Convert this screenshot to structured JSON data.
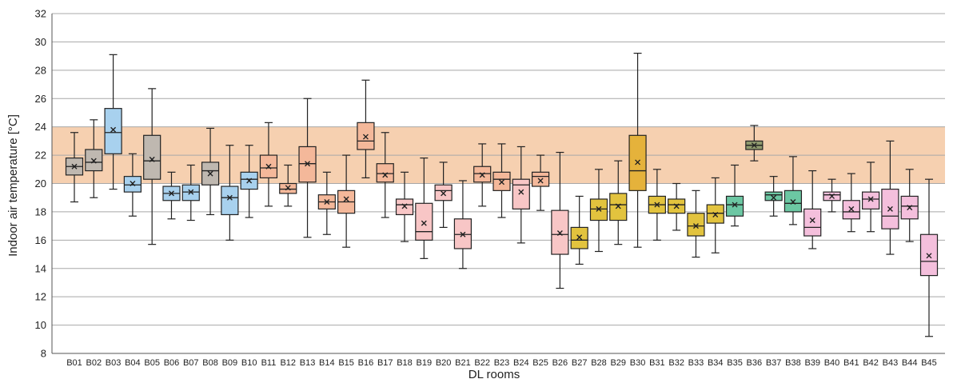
{
  "chart_data": {
    "type": "boxplot",
    "xlabel": "DL rooms",
    "ylabel": "Indoor air temperature [°C]",
    "ylim": [
      8,
      32
    ],
    "yticks": [
      8,
      10,
      12,
      14,
      16,
      18,
      20,
      22,
      24,
      26,
      28,
      30,
      32
    ],
    "grid": "horizontal",
    "comfort_band": {
      "low": 20,
      "high": 24,
      "color": "#f5cba7"
    },
    "boxes": [
      {
        "label": "B01",
        "min": 18.7,
        "q1": 20.6,
        "median": 21.2,
        "q3": 21.8,
        "max": 23.6,
        "mean": 21.2,
        "color": "#bfb8b0"
      },
      {
        "label": "B02",
        "min": 19.0,
        "q1": 20.9,
        "median": 21.5,
        "q3": 22.4,
        "max": 24.5,
        "mean": 21.6,
        "color": "#bfb8b0"
      },
      {
        "label": "B03",
        "min": 19.6,
        "q1": 22.1,
        "median": 23.6,
        "q3": 25.3,
        "max": 29.1,
        "mean": 23.8,
        "color": "#a8d1ee"
      },
      {
        "label": "B04",
        "min": 17.7,
        "q1": 19.4,
        "median": 19.9,
        "q3": 20.5,
        "max": 22.1,
        "mean": 20.0,
        "color": "#a8d1ee"
      },
      {
        "label": "B05",
        "min": 15.7,
        "q1": 20.3,
        "median": 21.6,
        "q3": 23.4,
        "max": 26.7,
        "mean": 21.7,
        "color": "#bfb8b0"
      },
      {
        "label": "B06",
        "min": 17.5,
        "q1": 18.8,
        "median": 19.3,
        "q3": 19.8,
        "max": 20.8,
        "mean": 19.3,
        "color": "#a8d1ee"
      },
      {
        "label": "B07",
        "min": 17.4,
        "q1": 18.8,
        "median": 19.4,
        "q3": 19.9,
        "max": 21.3,
        "mean": 19.4,
        "color": "#a8d1ee"
      },
      {
        "label": "B08",
        "min": 17.8,
        "q1": 19.9,
        "median": 20.9,
        "q3": 21.5,
        "max": 23.9,
        "mean": 20.7,
        "color": "#bfb8b0"
      },
      {
        "label": "B09",
        "min": 16.0,
        "q1": 17.8,
        "median": 19.0,
        "q3": 19.8,
        "max": 22.7,
        "mean": 19.0,
        "color": "#a8d1ee"
      },
      {
        "label": "B10",
        "min": 17.6,
        "q1": 19.6,
        "median": 20.3,
        "q3": 20.8,
        "max": 22.7,
        "mean": 20.2,
        "color": "#a8d1ee"
      },
      {
        "label": "B11",
        "min": 18.4,
        "q1": 20.4,
        "median": 21.1,
        "q3": 22.0,
        "max": 24.3,
        "mean": 21.2,
        "color": "#f4b89a"
      },
      {
        "label": "B12",
        "min": 18.4,
        "q1": 19.3,
        "median": 19.6,
        "q3": 20.0,
        "max": 21.3,
        "mean": 19.7,
        "color": "#f4b89a"
      },
      {
        "label": "B13",
        "min": 16.2,
        "q1": 20.1,
        "median": 21.4,
        "q3": 22.6,
        "max": 26.0,
        "mean": 21.4,
        "color": "#f4b89a"
      },
      {
        "label": "B14",
        "min": 16.4,
        "q1": 18.2,
        "median": 18.7,
        "q3": 19.2,
        "max": 20.8,
        "mean": 18.7,
        "color": "#f4b89a"
      },
      {
        "label": "B15",
        "min": 15.5,
        "q1": 17.9,
        "median": 18.7,
        "q3": 19.5,
        "max": 22.0,
        "mean": 18.9,
        "color": "#f4b89a"
      },
      {
        "label": "B16",
        "min": 20.4,
        "q1": 22.4,
        "median": 23.0,
        "q3": 24.3,
        "max": 27.3,
        "mean": 23.3,
        "color": "#f4b89a"
      },
      {
        "label": "B17",
        "min": 17.6,
        "q1": 20.1,
        "median": 20.7,
        "q3": 21.4,
        "max": 23.6,
        "mean": 20.6,
        "color": "#f4b89a"
      },
      {
        "label": "B18",
        "min": 15.9,
        "q1": 17.8,
        "median": 18.5,
        "q3": 18.9,
        "max": 20.8,
        "mean": 18.4,
        "color": "#f8c6c6"
      },
      {
        "label": "B19",
        "min": 14.7,
        "q1": 16.0,
        "median": 16.6,
        "q3": 18.6,
        "max": 21.8,
        "mean": 17.2,
        "color": "#f8c6c6"
      },
      {
        "label": "B20",
        "min": 16.9,
        "q1": 18.8,
        "median": 19.5,
        "q3": 19.9,
        "max": 21.5,
        "mean": 19.3,
        "color": "#f8c6c6"
      },
      {
        "label": "B21",
        "min": 14.0,
        "q1": 15.4,
        "median": 16.4,
        "q3": 17.5,
        "max": 20.2,
        "mean": 16.4,
        "color": "#f8c6c6"
      },
      {
        "label": "B22",
        "min": 18.4,
        "q1": 20.1,
        "median": 20.7,
        "q3": 21.2,
        "max": 22.8,
        "mean": 20.6,
        "color": "#f4b89a"
      },
      {
        "label": "B23",
        "min": 17.6,
        "q1": 19.5,
        "median": 20.3,
        "q3": 20.8,
        "max": 22.8,
        "mean": 20.1,
        "color": "#f4b89a"
      },
      {
        "label": "B24",
        "min": 15.8,
        "q1": 18.2,
        "median": 19.9,
        "q3": 20.3,
        "max": 22.6,
        "mean": 19.4,
        "color": "#f8c6c6"
      },
      {
        "label": "B25",
        "min": 18.1,
        "q1": 19.8,
        "median": 20.5,
        "q3": 20.8,
        "max": 22.0,
        "mean": 20.2,
        "color": "#f4b89a"
      },
      {
        "label": "B26",
        "min": 12.6,
        "q1": 15.0,
        "median": 16.4,
        "q3": 18.1,
        "max": 22.2,
        "mean": 16.5,
        "color": "#f8c6c6"
      },
      {
        "label": "B27",
        "min": 14.3,
        "q1": 15.4,
        "median": 16.0,
        "q3": 16.9,
        "max": 19.1,
        "mean": 16.2,
        "color": "#e2c33e"
      },
      {
        "label": "B28",
        "min": 15.2,
        "q1": 17.4,
        "median": 18.2,
        "q3": 18.9,
        "max": 21.0,
        "mean": 18.2,
        "color": "#e2c33e"
      },
      {
        "label": "B29",
        "min": 15.7,
        "q1": 17.4,
        "median": 18.5,
        "q3": 19.3,
        "max": 21.6,
        "mean": 18.4,
        "color": "#e2c33e"
      },
      {
        "label": "B30",
        "min": 15.5,
        "q1": 19.5,
        "median": 20.9,
        "q3": 23.4,
        "max": 29.2,
        "mean": 21.5,
        "color": "#e5b23b"
      },
      {
        "label": "B31",
        "min": 16.0,
        "q1": 17.9,
        "median": 18.5,
        "q3": 19.1,
        "max": 21.0,
        "mean": 18.5,
        "color": "#e2c33e"
      },
      {
        "label": "B32",
        "min": 16.7,
        "q1": 17.9,
        "median": 18.5,
        "q3": 18.9,
        "max": 20.0,
        "mean": 18.4,
        "color": "#e2c33e"
      },
      {
        "label": "B33",
        "min": 14.8,
        "q1": 16.3,
        "median": 17.0,
        "q3": 17.9,
        "max": 19.5,
        "mean": 17.0,
        "color": "#e2c33e"
      },
      {
        "label": "B34",
        "min": 15.1,
        "q1": 17.2,
        "median": 17.9,
        "q3": 18.5,
        "max": 20.4,
        "mean": 17.8,
        "color": "#e2c33e"
      },
      {
        "label": "B35",
        "min": 17.0,
        "q1": 17.7,
        "median": 18.5,
        "q3": 19.1,
        "max": 21.3,
        "mean": 18.5,
        "color": "#6cc7a3"
      },
      {
        "label": "B36",
        "min": 21.6,
        "q1": 22.4,
        "median": 22.7,
        "q3": 23.0,
        "max": 24.1,
        "mean": 22.7,
        "color": "#8f9a6e"
      },
      {
        "label": "B37",
        "min": 17.7,
        "q1": 18.8,
        "median": 19.2,
        "q3": 19.4,
        "max": 20.5,
        "mean": 19.0,
        "color": "#6cc7a3"
      },
      {
        "label": "B38",
        "min": 17.1,
        "q1": 18.0,
        "median": 18.6,
        "q3": 19.5,
        "max": 21.9,
        "mean": 18.7,
        "color": "#6cc7a3"
      },
      {
        "label": "B39",
        "min": 15.4,
        "q1": 16.3,
        "median": 16.9,
        "q3": 18.2,
        "max": 20.9,
        "mean": 17.4,
        "color": "#f4bfdc"
      },
      {
        "label": "B40",
        "min": 18.0,
        "q1": 18.8,
        "median": 19.2,
        "q3": 19.4,
        "max": 20.3,
        "mean": 19.1,
        "color": "#f4bfdc"
      },
      {
        "label": "B41",
        "min": 16.6,
        "q1": 17.5,
        "median": 18.0,
        "q3": 18.8,
        "max": 20.7,
        "mean": 18.2,
        "color": "#f4bfdc"
      },
      {
        "label": "B42",
        "min": 16.6,
        "q1": 18.2,
        "median": 18.9,
        "q3": 19.4,
        "max": 21.5,
        "mean": 18.9,
        "color": "#f4bfdc"
      },
      {
        "label": "B43",
        "min": 15.0,
        "q1": 16.8,
        "median": 17.7,
        "q3": 19.6,
        "max": 23.0,
        "mean": 18.2,
        "color": "#f4bfdc"
      },
      {
        "label": "B44",
        "min": 15.9,
        "q1": 17.5,
        "median": 18.4,
        "q3": 19.1,
        "max": 21.0,
        "mean": 18.3,
        "color": "#f4bfdc"
      },
      {
        "label": "B45",
        "min": 9.2,
        "q1": 13.5,
        "median": 14.5,
        "q3": 16.4,
        "max": 20.3,
        "mean": 14.9,
        "color": "#f4bfdc"
      }
    ]
  }
}
